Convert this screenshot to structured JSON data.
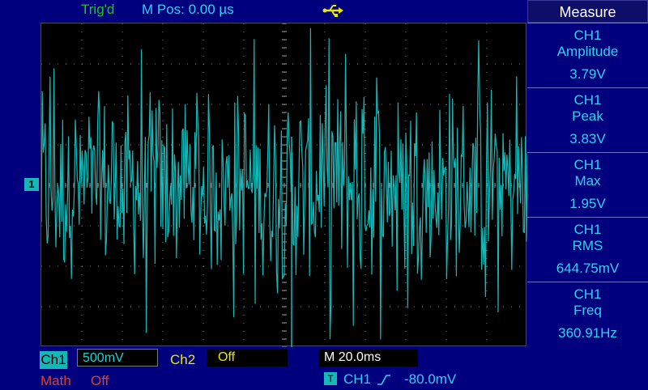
{
  "status": {
    "trig_state": "Trig'd",
    "m_pos": "M Pos: 0.00 µs",
    "usb_icon": "usb-icon"
  },
  "channel_marker": "1",
  "bottom": {
    "ch1_label": "Ch1",
    "ch1_scale": "500mV",
    "ch2_label": "Ch2",
    "ch2_scale": "Off",
    "timebase": "M 20.0ms",
    "math_label": "Math",
    "math_state": "Off",
    "trig_badge": "T",
    "trig_source": "CH1",
    "trig_level": "-80.0mV"
  },
  "measure": {
    "title": "Measure",
    "items": [
      {
        "channel": "CH1",
        "name": "Amplitude",
        "value": "3.79V"
      },
      {
        "channel": "CH1",
        "name": "Peak",
        "value": "3.83V"
      },
      {
        "channel": "CH1",
        "name": "Max",
        "value": "1.95V"
      },
      {
        "channel": "CH1",
        "name": "RMS",
        "value": "644.75mV"
      },
      {
        "channel": "CH1",
        "name": "Freq",
        "value": "360.91Hz"
      }
    ]
  },
  "colors": {
    "background": "#00007f",
    "trace": "#18b7b7",
    "trig_text": "#19c919",
    "ch2": "#e8e800",
    "math": "#e04020"
  },
  "waveform": {
    "type": "noise",
    "amplitude_v": 3.79,
    "max_v": 1.95,
    "volts_per_div": 0.5,
    "time_per_div_ms": 20,
    "divisions_x": 12,
    "divisions_y": 8
  }
}
